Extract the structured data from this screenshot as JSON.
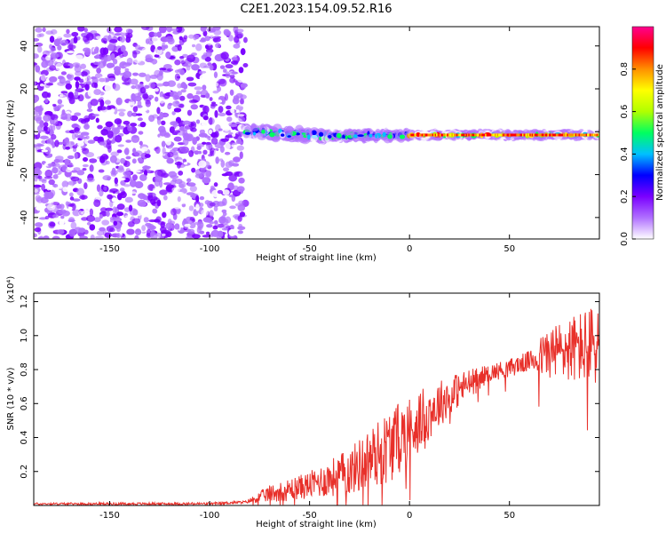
{
  "title": "C2E1.2023.154.09.52.R16",
  "chart_data": [
    {
      "type": "heatmap",
      "xlabel": "Height of straight line (km)",
      "ylabel": "Frequency (Hz)",
      "xlim": [
        -188,
        95
      ],
      "ylim": [
        -50,
        49
      ],
      "xticks": [
        -150,
        -100,
        -50,
        0,
        50
      ],
      "yticks": [
        -40,
        -20,
        0,
        20,
        40
      ],
      "colorbar": {
        "label": "Normalized spectral amplitude",
        "range": [
          0,
          1
        ],
        "ticks": [
          "0.0",
          "0.2",
          "0.4",
          "0.6",
          "0.8"
        ],
        "tick_values": [
          0,
          0.2,
          0.4,
          0.6,
          0.8
        ],
        "colors": [
          "#ffffff",
          "#b070ff",
          "#7a00ff",
          "#0000ff",
          "#00c0ff",
          "#00ff60",
          "#b0ff00",
          "#ffff00",
          "#ff9000",
          "#ff0000",
          "#ff0090"
        ]
      },
      "regions": [
        {
          "x": [
            -188,
            -82
          ],
          "freq_range": [
            -50,
            49
          ],
          "amplitude": [
            0.02,
            0.22
          ],
          "description_key": "noise"
        },
        {
          "x": [
            -82,
            -40
          ],
          "freq_center": 0,
          "freq_spread": 6,
          "amplitude": [
            0.3,
            0.6
          ]
        },
        {
          "x": [
            -40,
            0
          ],
          "freq_center": -2,
          "freq_spread": 3,
          "amplitude": [
            0.35,
            0.7
          ]
        },
        {
          "x": [
            0,
            95
          ],
          "freq_center": -1.5,
          "freq_spread": 1.5,
          "amplitude": [
            0.7,
            0.95
          ]
        }
      ],
      "bands": [
        {
          "x0": -82,
          "x1": -40,
          "f0": 0,
          "f1": -2,
          "halfwidth": 4.5,
          "amp": 0.55,
          "tone": "dark"
        },
        {
          "x0": -40,
          "x1": 0,
          "f0": -2,
          "f1": -1.5,
          "halfwidth": 3,
          "amp": 0.6,
          "tone": "mid"
        },
        {
          "x0": 0,
          "x1": 95,
          "f0": -1.5,
          "f1": -1.5,
          "halfwidth": 1.3,
          "amp": 0.95,
          "tone": "hot"
        }
      ]
    },
    {
      "type": "line",
      "xlabel": "Height of straight line (km)",
      "ylabel": "SNR (10 * v/v)",
      "y_multiplier": "(x10⁴)",
      "xlim": [
        -188,
        95
      ],
      "ylim": [
        0,
        1.25
      ],
      "xticks": [
        -150,
        -100,
        -50,
        0,
        50
      ],
      "yticks": [
        "0.2",
        "0.4",
        "0.6",
        "0.8",
        "1.0",
        "1.2"
      ],
      "ytick_values": [
        0.2,
        0.4,
        0.6,
        0.8,
        1.0,
        1.2
      ],
      "series": [
        {
          "color": "#e8302a",
          "trend": {
            "x": [
              -188,
              -150,
              -100,
              -82,
              -70,
              -50,
              -30,
              -10,
              0,
              10,
              20,
              30,
              40,
              50,
              60,
              70,
              80,
              95
            ],
            "y": [
              0.01,
              0.01,
              0.01,
              0.02,
              0.07,
              0.12,
              0.2,
              0.35,
              0.45,
              0.55,
              0.65,
              0.72,
              0.78,
              0.81,
              0.85,
              0.9,
              0.92,
              0.95
            ]
          },
          "noise_amplitude": {
            "x": [
              -188,
              -82,
              -70,
              -50,
              -30,
              -10,
              0,
              20,
              40,
              60,
              70,
              95
            ],
            "y": [
              0.006,
              0.008,
              0.05,
              0.08,
              0.14,
              0.22,
              0.2,
              0.12,
              0.05,
              0.06,
              0.16,
              0.25
            ]
          }
        }
      ]
    }
  ]
}
